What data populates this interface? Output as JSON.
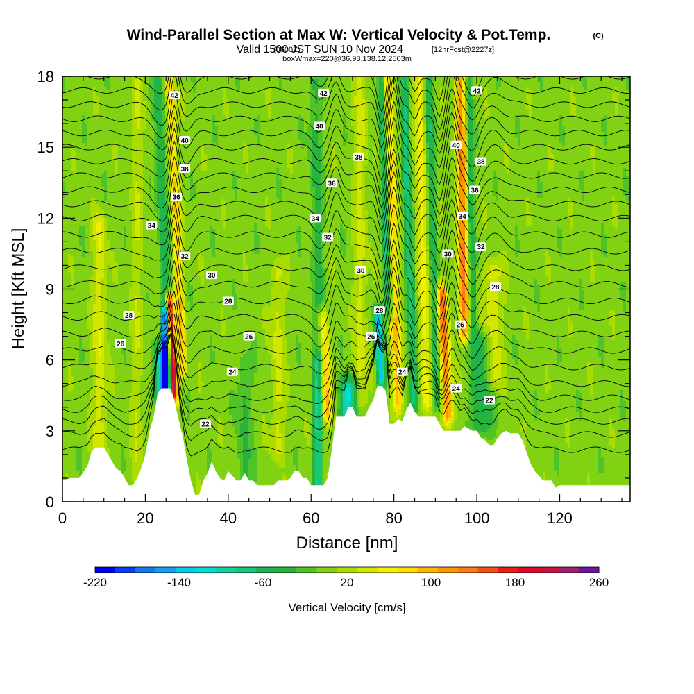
{
  "header": {
    "title": "Wind-Parallel Section at Max W: Vertical Velocity & Pot.Temp.",
    "copyright": "(C)",
    "valid_prefix": "Valid 1500 JST",
    "valid_zulu": "(0600Z)",
    "valid_date": "SUN 10 Nov 2024",
    "forecast": "[12hrFcst@2227z]",
    "box": "boxWmax=220@36.93,138.12,2503m"
  },
  "chart_data": {
    "type": "heatmap",
    "xlabel": "Distance [nm]",
    "ylabel": "Height [Kft MSL]",
    "xlim": [
      0,
      137
    ],
    "ylim": [
      0,
      18
    ],
    "xticks": [
      0,
      20,
      40,
      60,
      80,
      100,
      120
    ],
    "yticks": [
      0,
      3,
      6,
      9,
      12,
      15,
      18
    ],
    "colorbar": {
      "label": "Vertical Velocity [cm/s]",
      "min": -220,
      "max": 260,
      "step": 20,
      "tick_values": [
        -220,
        -140,
        -60,
        20,
        100,
        180,
        260
      ],
      "tick_labels": [
        "-220",
        "-140",
        "-60",
        "20",
        "100",
        "180",
        "260"
      ],
      "colors": [
        "#0000f0",
        "#0a3cf5",
        "#1478f5",
        "#14a0f0",
        "#00c8f0",
        "#00dcd2",
        "#14d2a0",
        "#14c878",
        "#1eb450",
        "#28b43c",
        "#50c328",
        "#82d214",
        "#aadc00",
        "#d2e600",
        "#f0f000",
        "#ffdc00",
        "#ffb400",
        "#ff9600",
        "#ff7814",
        "#f55014",
        "#eb1e14",
        "#dc0a28",
        "#c8143c",
        "#a01e6e",
        "#6e14a0"
      ]
    },
    "background_w_cms": 10,
    "updraft_plumes": [
      {
        "x": 9,
        "w": 50,
        "width": 1.5,
        "z0": 1,
        "z1": 12
      },
      {
        "x": 18,
        "w": 25,
        "width": 1.5,
        "z0": 1,
        "z1": 18
      },
      {
        "x": 27,
        "w": 260,
        "width": 0.9,
        "z0": 4.5,
        "z1": 8.5,
        "tilt": -0.3
      },
      {
        "x": 29,
        "w": 90,
        "width": 1.0,
        "z0": 5.5,
        "z1": 18,
        "tilt": -0.25
      },
      {
        "x": 52,
        "w": 40,
        "width": 1.5,
        "z0": 2,
        "z1": 10
      },
      {
        "x": 64,
        "w": 90,
        "width": 1.2,
        "z0": 3.5,
        "z1": 8,
        "tilt": -0.3
      },
      {
        "x": 72,
        "w": 40,
        "width": 1.5,
        "z0": 4,
        "z1": 18
      },
      {
        "x": 81,
        "w": 100,
        "width": 1.2,
        "z0": 4,
        "z1": 18,
        "tilt": -0.2
      },
      {
        "x": 88,
        "w": 60,
        "width": 1.3,
        "z0": 4,
        "z1": 18,
        "tilt": -0.15
      },
      {
        "x": 93,
        "w": 140,
        "width": 1.3,
        "z0": 3.5,
        "z1": 9,
        "tilt": -0.25
      },
      {
        "x": 97,
        "w": 130,
        "width": 1.2,
        "z0": 7,
        "z1": 18,
        "tilt": -0.1
      },
      {
        "x": 104,
        "w": 50,
        "width": 2.0,
        "z0": 5,
        "z1": 10
      }
    ],
    "downdraft_plumes": [
      {
        "x": 25,
        "w": -220,
        "width": 1.0,
        "z0": 4.5,
        "z1": 8
      },
      {
        "x": 23.5,
        "w": -120,
        "width": 1.5,
        "z0": 4.5,
        "z1": 6.5
      },
      {
        "x": 25,
        "w": -60,
        "width": 1.2,
        "z0": 8,
        "z1": 18,
        "tilt": -0.2
      },
      {
        "x": 44,
        "w": -40,
        "width": 1.5,
        "z0": 1,
        "z1": 6
      },
      {
        "x": 61.5,
        "w": -90,
        "width": 1.0,
        "z0": 0.5,
        "z1": 6
      },
      {
        "x": 62,
        "w": -40,
        "width": 1.5,
        "z0": 6,
        "z1": 18,
        "tilt": -0.1
      },
      {
        "x": 69,
        "w": -120,
        "width": 2.0,
        "z0": 3.5,
        "z1": 5
      },
      {
        "x": 77,
        "w": -140,
        "width": 1.0,
        "z0": 5,
        "z1": 8,
        "tilt": -0.3
      },
      {
        "x": 79,
        "w": -100,
        "width": 1.0,
        "z0": 8,
        "z1": 18,
        "tilt": -0.2
      },
      {
        "x": 85,
        "w": -80,
        "width": 1.0,
        "z0": 4,
        "z1": 18,
        "tilt": -0.2
      },
      {
        "x": 90.5,
        "w": -60,
        "width": 1.0,
        "z0": 4,
        "z1": 18,
        "tilt": -0.15
      },
      {
        "x": 101,
        "w": -60,
        "width": 2.5,
        "z0": 3,
        "z1": 7
      },
      {
        "x": 99,
        "w": -50,
        "width": 1.0,
        "z0": 7,
        "z1": 18,
        "tilt": -0.1
      }
    ],
    "terrain_ft_kft": [
      [
        0,
        0.9
      ],
      [
        2,
        1.0
      ],
      [
        4,
        1.0
      ],
      [
        6,
        1.5
      ],
      [
        7,
        2.1
      ],
      [
        8,
        2.3
      ],
      [
        9,
        2.3
      ],
      [
        10,
        2.3
      ],
      [
        11,
        2.0
      ],
      [
        12,
        1.7
      ],
      [
        13,
        1.4
      ],
      [
        14,
        1.3
      ],
      [
        15,
        1.0
      ],
      [
        16,
        0.7
      ],
      [
        17,
        0.7
      ],
      [
        18,
        1.0
      ],
      [
        19,
        1.4
      ],
      [
        20,
        2.0
      ],
      [
        21,
        3.0
      ],
      [
        22,
        3.6
      ],
      [
        23,
        4.6
      ],
      [
        24,
        4.8
      ],
      [
        25,
        4.8
      ],
      [
        26,
        4.8
      ],
      [
        27,
        4.3
      ],
      [
        28,
        3.5
      ],
      [
        29,
        2.8
      ],
      [
        30,
        1.8
      ],
      [
        31,
        0.9
      ],
      [
        32,
        0.3
      ],
      [
        33,
        0.3
      ],
      [
        34,
        0.9
      ],
      [
        35,
        1.2
      ],
      [
        36,
        1.7
      ],
      [
        37,
        1.3
      ],
      [
        38,
        1.0
      ],
      [
        39,
        0.9
      ],
      [
        40,
        1.3
      ],
      [
        41,
        1.1
      ],
      [
        42,
        0.9
      ],
      [
        43,
        0.9
      ],
      [
        44,
        1.2
      ],
      [
        45,
        0.9
      ],
      [
        46,
        0.9
      ],
      [
        47,
        0.7
      ],
      [
        48,
        0.7
      ],
      [
        49,
        0.7
      ],
      [
        50,
        0.7
      ],
      [
        51,
        0.7
      ],
      [
        52,
        0.9
      ],
      [
        53,
        0.9
      ],
      [
        54,
        0.9
      ],
      [
        55,
        1.0
      ],
      [
        56,
        1.3
      ],
      [
        57,
        1.3
      ],
      [
        58,
        1.0
      ],
      [
        59,
        1.0
      ],
      [
        60,
        0.7
      ],
      [
        61,
        0.7
      ],
      [
        62,
        0.7
      ],
      [
        63,
        0.7
      ],
      [
        64,
        1.0
      ],
      [
        65,
        2.2
      ],
      [
        66,
        3.6
      ],
      [
        67,
        3.6
      ],
      [
        68,
        3.6
      ],
      [
        69,
        4.0
      ],
      [
        70,
        4.0
      ],
      [
        71,
        3.6
      ],
      [
        72,
        3.6
      ],
      [
        73,
        3.6
      ],
      [
        74,
        4.0
      ],
      [
        75,
        4.3
      ],
      [
        76,
        4.9
      ],
      [
        77,
        4.9
      ],
      [
        78,
        4.7
      ],
      [
        79,
        3.3
      ],
      [
        80,
        3.3
      ],
      [
        81,
        3.5
      ],
      [
        82,
        3.4
      ],
      [
        83,
        3.9
      ],
      [
        84,
        4.2
      ],
      [
        85,
        3.8
      ],
      [
        86,
        3.6
      ],
      [
        87,
        3.6
      ],
      [
        88,
        3.6
      ],
      [
        89,
        3.6
      ],
      [
        90,
        3.6
      ],
      [
        91,
        3.3
      ],
      [
        92,
        3.0
      ],
      [
        93,
        3.0
      ],
      [
        94,
        3.0
      ],
      [
        95,
        3.0
      ],
      [
        96,
        3.0
      ],
      [
        97,
        3.2
      ],
      [
        98,
        3.1
      ],
      [
        99,
        3.0
      ],
      [
        100,
        3.0
      ],
      [
        101,
        2.7
      ],
      [
        102,
        2.6
      ],
      [
        103,
        2.4
      ],
      [
        104,
        2.4
      ],
      [
        105,
        2.7
      ],
      [
        106,
        2.9
      ],
      [
        107,
        3.0
      ],
      [
        108,
        2.9
      ],
      [
        109,
        2.9
      ],
      [
        110,
        2.9
      ],
      [
        111,
        2.6
      ],
      [
        112,
        2.1
      ],
      [
        113,
        1.6
      ],
      [
        114,
        1.3
      ],
      [
        115,
        1.1
      ],
      [
        116,
        0.9
      ],
      [
        117,
        0.9
      ],
      [
        118,
        0.9
      ],
      [
        119,
        0.6
      ],
      [
        120,
        0.7
      ],
      [
        121,
        0.7
      ],
      [
        122,
        0.7
      ],
      [
        124,
        0.7
      ],
      [
        128,
        0.7
      ],
      [
        132,
        0.7
      ],
      [
        137,
        0.7
      ]
    ],
    "theta_contours": {
      "interval": 1,
      "levels": [
        19,
        20,
        21,
        22,
        23,
        24,
        25,
        26,
        27,
        28,
        29,
        30,
        31,
        32,
        33,
        34,
        35,
        36,
        37,
        38,
        39,
        40,
        41,
        42,
        43,
        44
      ],
      "base_height_kft": [
        2.2,
        2.85,
        3.4,
        3.9,
        4.4,
        5.0,
        5.7,
        6.4,
        7.1,
        7.8,
        8.5,
        9.2,
        9.9,
        10.6,
        11.3,
        12.0,
        12.6,
        13.2,
        13.8,
        14.4,
        15.0,
        15.6,
        16.2,
        16.8,
        17.4,
        18.0
      ],
      "wave_perturbations": [
        {
          "x": 24,
          "amp": -0.8,
          "width": 3
        },
        {
          "x": 27,
          "amp": 1.6,
          "width": 1.2
        },
        {
          "x": 30,
          "amp": -0.6,
          "width": 2
        },
        {
          "x": 62,
          "amp": -0.5,
          "width": 2
        },
        {
          "x": 66,
          "amp": 0.9,
          "width": 1.6
        },
        {
          "x": 77,
          "amp": -1.4,
          "width": 1.4
        },
        {
          "x": 80,
          "amp": 1.8,
          "width": 1.3
        },
        {
          "x": 85,
          "amp": -0.7,
          "width": 1.2
        },
        {
          "x": 91,
          "amp": -1.0,
          "width": 1.3
        },
        {
          "x": 94,
          "amp": 1.4,
          "width": 1.4
        },
        {
          "x": 99,
          "amp": -0.8,
          "width": 2
        },
        {
          "x": 104,
          "amp": 0.6,
          "width": 3
        }
      ]
    },
    "contour_labels": [
      {
        "x": 27,
        "y": 17.2,
        "text": "42"
      },
      {
        "x": 63,
        "y": 17.3,
        "text": "42"
      },
      {
        "x": 100,
        "y": 17.4,
        "text": "42"
      },
      {
        "x": 62,
        "y": 15.9,
        "text": "40"
      },
      {
        "x": 29.5,
        "y": 15.3,
        "text": "40"
      },
      {
        "x": 95,
        "y": 15.1,
        "text": "40"
      },
      {
        "x": 71.5,
        "y": 14.6,
        "text": "38"
      },
      {
        "x": 101,
        "y": 14.4,
        "text": "38"
      },
      {
        "x": 29.5,
        "y": 14.1,
        "text": "38"
      },
      {
        "x": 65,
        "y": 13.5,
        "text": "36"
      },
      {
        "x": 99.5,
        "y": 13.2,
        "text": "36"
      },
      {
        "x": 27.5,
        "y": 12.9,
        "text": "36"
      },
      {
        "x": 21.5,
        "y": 11.7,
        "text": "34"
      },
      {
        "x": 61,
        "y": 12.0,
        "text": "34"
      },
      {
        "x": 96.5,
        "y": 12.1,
        "text": "34"
      },
      {
        "x": 64,
        "y": 11.2,
        "text": "32"
      },
      {
        "x": 101,
        "y": 10.8,
        "text": "32"
      },
      {
        "x": 29.5,
        "y": 10.4,
        "text": "32"
      },
      {
        "x": 93,
        "y": 10.5,
        "text": "30"
      },
      {
        "x": 36,
        "y": 9.6,
        "text": "30"
      },
      {
        "x": 72,
        "y": 9.8,
        "text": "30"
      },
      {
        "x": 104.5,
        "y": 9.1,
        "text": "28"
      },
      {
        "x": 40,
        "y": 8.5,
        "text": "28"
      },
      {
        "x": 76.5,
        "y": 8.1,
        "text": "28"
      },
      {
        "x": 16,
        "y": 7.9,
        "text": "28"
      },
      {
        "x": 96,
        "y": 7.5,
        "text": "26"
      },
      {
        "x": 14,
        "y": 6.7,
        "text": "26"
      },
      {
        "x": 45,
        "y": 7.0,
        "text": "26"
      },
      {
        "x": 74.5,
        "y": 7.0,
        "text": "26"
      },
      {
        "x": 82,
        "y": 5.5,
        "text": "24"
      },
      {
        "x": 41,
        "y": 5.5,
        "text": "24"
      },
      {
        "x": 95,
        "y": 4.8,
        "text": "24"
      },
      {
        "x": 103,
        "y": 4.3,
        "text": "22"
      },
      {
        "x": 34.5,
        "y": 3.3,
        "text": "22"
      }
    ]
  }
}
